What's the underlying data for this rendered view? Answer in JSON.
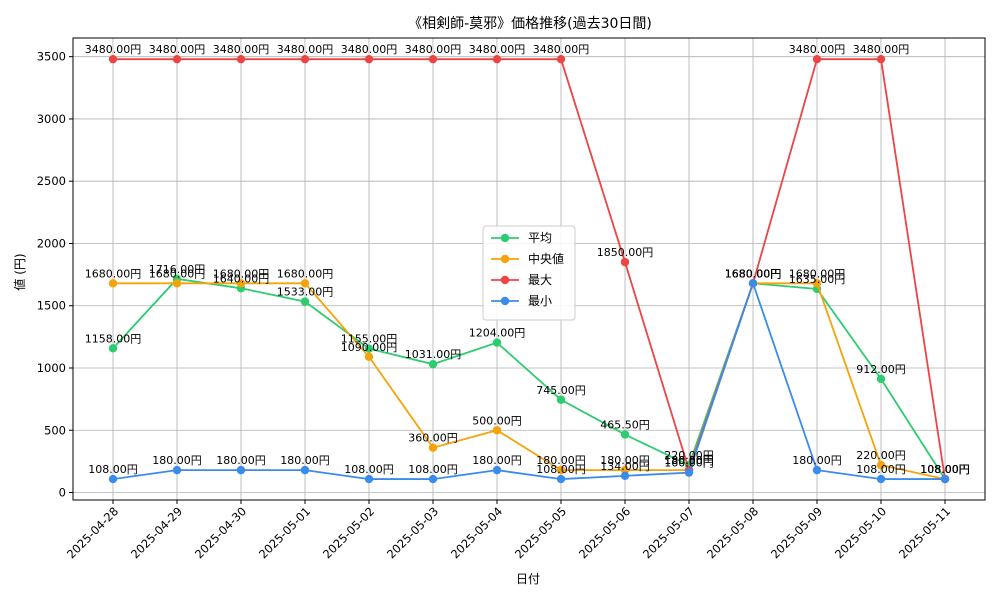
{
  "chart_data": {
    "type": "line",
    "title": "《相剣師-莫邪》価格推移(過去30日間)",
    "xlabel": "日付",
    "ylabel": "値 (円)",
    "ylim": [
      -60,
      3650
    ],
    "yticks": [
      0,
      500,
      1000,
      1500,
      2000,
      2500,
      3000,
      3500
    ],
    "grid": true,
    "legend_position": "center",
    "categories": [
      "2025-04-28",
      "2025-04-29",
      "2025-04-30",
      "2025-05-01",
      "2025-05-02",
      "2025-05-03",
      "2025-05-04",
      "2025-05-05",
      "2025-05-06",
      "2025-05-07",
      "2025-05-08",
      "2025-05-09",
      "2025-05-10",
      "2025-05-11"
    ],
    "series": [
      {
        "name": "平均",
        "color": "#2ecc71",
        "values": [
          1158,
          1716,
          1640,
          1533,
          1155,
          1031,
          1204,
          745,
          465.5,
          220,
          1680,
          1635,
          912,
          108
        ],
        "labels": [
          "1158.00円",
          "1716.00円",
          "1640.00円",
          "1533.00円",
          "1155.00円",
          "1031.00円",
          "1204.00円",
          "745.00円",
          "465.50円",
          "220.00円",
          "1680.00円",
          "1635.00円",
          "912.00円",
          "108.00円"
        ]
      },
      {
        "name": "中央値",
        "color": "#f5a30a",
        "values": [
          1680,
          1680,
          1680,
          1680,
          1090,
          360,
          500,
          180,
          180,
          180,
          1680,
          1680,
          220,
          108
        ],
        "labels": [
          "1680.00円",
          "1680.00円",
          "1680.00円",
          "1680.00円",
          "1090.00円",
          "360.00円",
          "500.00円",
          "180.00円",
          "180.00円",
          "180.00円",
          "1680.00円",
          "1680.00円",
          "220.00円",
          "108.00円"
        ]
      },
      {
        "name": "最大",
        "color": "#ef4444",
        "values": [
          3480,
          3480,
          3480,
          3480,
          3480,
          3480,
          3480,
          3480,
          1850,
          180,
          1680,
          3480,
          3480,
          108
        ],
        "labels": [
          "3480.00円",
          "3480.00円",
          "3480.00円",
          "3480.00円",
          "3480.00円",
          "3480.00円",
          "3480.00円",
          "3480.00円",
          "1850.00円",
          "180.00円",
          "1680.00円",
          "3480.00円",
          "3480.00円",
          "108.00円"
        ]
      },
      {
        "name": "最小",
        "color": "#3b8beb",
        "values": [
          108,
          180,
          180,
          180,
          108,
          108,
          180,
          108,
          134,
          160,
          1680,
          180,
          108,
          108
        ],
        "labels": [
          "108.00円",
          "180.00円",
          "180.00円",
          "180.00円",
          "108.00円",
          "108.00円",
          "180.00円",
          "108.00円",
          "134.00円",
          "160.00円",
          "1680.00円",
          "180.00円",
          "108.00円",
          "108.00円"
        ]
      }
    ]
  }
}
